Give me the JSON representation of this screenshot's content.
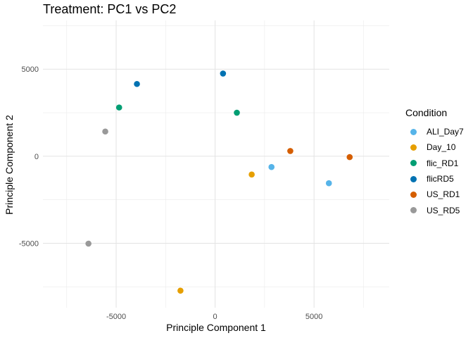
{
  "chart_data": {
    "type": "scatter",
    "title": "Treatment: PC1 vs PC2",
    "xlabel": "Principle Component 1",
    "ylabel": "Principle Component 2",
    "xlim": [
      -8700,
      8800
    ],
    "ylim": [
      -8700,
      7800
    ],
    "x_ticks": [
      -5000,
      0,
      5000
    ],
    "y_ticks": [
      -5000,
      0,
      5000
    ],
    "x_tick_labels": [
      "-5000",
      "0",
      "5000"
    ],
    "y_tick_labels": [
      "-5000",
      "0",
      "5000"
    ],
    "grid": true,
    "legend": {
      "title": "Condition",
      "position": "right"
    },
    "series": [
      {
        "name": "ALI_Day7",
        "color": "#56B4E9",
        "points": [
          [
            2850,
            -620
          ],
          [
            5750,
            -1550
          ]
        ]
      },
      {
        "name": "Day_10",
        "color": "#E69F00",
        "points": [
          [
            1850,
            -1050
          ],
          [
            -1750,
            -7720
          ]
        ]
      },
      {
        "name": "flic_RD1",
        "color": "#009E73",
        "points": [
          [
            -4850,
            2800
          ],
          [
            1100,
            2500
          ]
        ]
      },
      {
        "name": "flicRD5",
        "color": "#0072B2",
        "points": [
          [
            -3950,
            4150
          ],
          [
            400,
            4750
          ]
        ]
      },
      {
        "name": "US_RD1",
        "color": "#D55E00",
        "points": [
          [
            3800,
            300
          ],
          [
            6800,
            -50
          ]
        ]
      },
      {
        "name": "US_RD5",
        "color": "#999999",
        "points": [
          [
            -5550,
            1420
          ],
          [
            -6400,
            -5020
          ]
        ]
      }
    ]
  }
}
